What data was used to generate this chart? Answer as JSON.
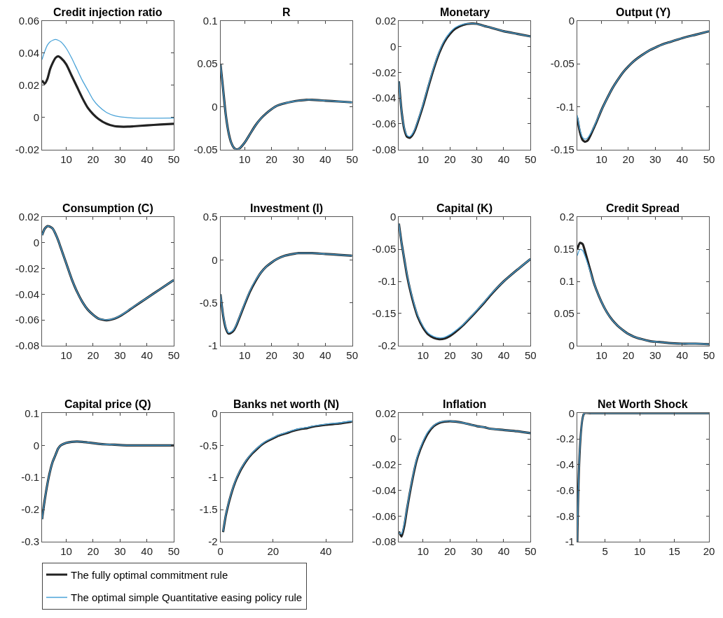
{
  "chart_data": [
    {
      "type": "line",
      "title": "Credit injection ratio",
      "legend": "bottom",
      "xlim": [
        1,
        50
      ],
      "xticks": [
        10,
        20,
        30,
        40,
        50
      ],
      "ylim": [
        -0.02,
        0.06
      ],
      "yticks": [
        -0.02,
        0,
        0.02,
        0.04,
        0.06
      ],
      "x": [
        1,
        2,
        3,
        4,
        5,
        6,
        7,
        8,
        10,
        12,
        14,
        16,
        18,
        20,
        22,
        25,
        28,
        30,
        33,
        35,
        40,
        45,
        50
      ],
      "series": [
        {
          "name": "The fully optimal commitment rule",
          "color": "#222222",
          "values": [
            0.023,
            0.021,
            0.024,
            0.03,
            0.034,
            0.037,
            0.038,
            0.037,
            0.033,
            0.026,
            0.019,
            0.012,
            0.006,
            0.002,
            -0.001,
            -0.004,
            -0.0055,
            -0.0058,
            -0.0058,
            -0.0056,
            -0.005,
            -0.0045,
            -0.004
          ]
        },
        {
          "name": "The optimal simple Quantitative easing policy rule",
          "color": "#4aa3d8",
          "values": [
            0.036,
            0.041,
            0.045,
            0.047,
            0.048,
            0.0485,
            0.048,
            0.047,
            0.043,
            0.037,
            0.03,
            0.023,
            0.017,
            0.011,
            0.007,
            0.003,
            0.001,
            0.0003,
            -0.0002,
            -0.0004,
            -0.0005,
            -0.0005,
            -0.0004
          ]
        }
      ]
    },
    {
      "type": "line",
      "title": "R",
      "xlim": [
        1,
        50
      ],
      "xticks": [
        10,
        20,
        30,
        40,
        50
      ],
      "ylim": [
        -0.05,
        0.1
      ],
      "yticks": [
        -0.05,
        0,
        0.05,
        0.1
      ],
      "x": [
        1,
        2,
        3,
        4,
        5,
        6,
        7,
        8,
        10,
        12,
        14,
        16,
        18,
        20,
        22,
        25,
        28,
        30,
        33,
        35,
        40,
        45,
        50
      ],
      "series": [
        {
          "name": "The fully optimal commitment rule",
          "color": "#222222",
          "values": [
            0.05,
            0.02,
            -0.01,
            -0.03,
            -0.042,
            -0.048,
            -0.05,
            -0.049,
            -0.042,
            -0.032,
            -0.022,
            -0.014,
            -0.008,
            -0.003,
            0.001,
            0.004,
            0.006,
            0.007,
            0.008,
            0.008,
            0.007,
            0.006,
            0.005
          ]
        },
        {
          "name": "The optimal simple Quantitative easing policy rule",
          "color": "#4aa3d8",
          "values": [
            0.05,
            0.02,
            -0.01,
            -0.03,
            -0.042,
            -0.048,
            -0.05,
            -0.049,
            -0.042,
            -0.032,
            -0.022,
            -0.014,
            -0.008,
            -0.003,
            0.001,
            0.004,
            0.006,
            0.007,
            0.008,
            0.008,
            0.007,
            0.006,
            0.005
          ]
        }
      ]
    },
    {
      "type": "line",
      "title": "Monetary",
      "xlim": [
        1,
        50
      ],
      "xticks": [
        10,
        20,
        30,
        40,
        50
      ],
      "ylim": [
        -0.08,
        0.02
      ],
      "yticks": [
        -0.08,
        -0.06,
        -0.04,
        -0.02,
        0,
        0.02
      ],
      "x": [
        1,
        2,
        3,
        4,
        5,
        6,
        7,
        8,
        10,
        12,
        14,
        16,
        18,
        20,
        22,
        25,
        28,
        30,
        33,
        35,
        40,
        45,
        50
      ],
      "series": [
        {
          "name": "The fully optimal commitment rule",
          "color": "#222222",
          "values": [
            -0.027,
            -0.05,
            -0.064,
            -0.07,
            -0.071,
            -0.069,
            -0.065,
            -0.059,
            -0.046,
            -0.031,
            -0.017,
            -0.005,
            0.004,
            0.01,
            0.014,
            0.017,
            0.018,
            0.0178,
            0.016,
            0.015,
            0.012,
            0.01,
            0.008
          ]
        },
        {
          "name": "The optimal simple Quantitative easing policy rule",
          "color": "#4aa3d8",
          "values": [
            -0.027,
            -0.05,
            -0.063,
            -0.069,
            -0.07,
            -0.068,
            -0.064,
            -0.058,
            -0.045,
            -0.03,
            -0.016,
            -0.004,
            0.005,
            0.011,
            0.015,
            0.0175,
            0.018,
            0.0178,
            0.016,
            0.015,
            0.012,
            0.01,
            0.008
          ]
        }
      ]
    },
    {
      "type": "line",
      "title": "Output (Y)",
      "xlim": [
        1,
        50
      ],
      "xticks": [
        10,
        20,
        30,
        40,
        50
      ],
      "ylim": [
        -0.15,
        0
      ],
      "yticks": [
        -0.15,
        -0.1,
        -0.05,
        0
      ],
      "x": [
        1,
        2,
        3,
        4,
        5,
        6,
        7,
        8,
        10,
        12,
        14,
        16,
        18,
        20,
        22,
        25,
        28,
        30,
        33,
        35,
        40,
        45,
        50
      ],
      "series": [
        {
          "name": "The fully optimal commitment rule",
          "color": "#222222",
          "values": [
            -0.113,
            -0.13,
            -0.139,
            -0.141,
            -0.139,
            -0.133,
            -0.126,
            -0.119,
            -0.104,
            -0.091,
            -0.079,
            -0.069,
            -0.06,
            -0.053,
            -0.047,
            -0.04,
            -0.034,
            -0.031,
            -0.027,
            -0.025,
            -0.02,
            -0.016,
            -0.012
          ]
        },
        {
          "name": "The optimal simple Quantitative easing policy rule",
          "color": "#4aa3d8",
          "values": [
            -0.11,
            -0.127,
            -0.136,
            -0.138,
            -0.136,
            -0.131,
            -0.125,
            -0.118,
            -0.104,
            -0.091,
            -0.079,
            -0.069,
            -0.06,
            -0.053,
            -0.047,
            -0.04,
            -0.034,
            -0.031,
            -0.027,
            -0.025,
            -0.02,
            -0.016,
            -0.012
          ]
        }
      ]
    },
    {
      "type": "line",
      "title": "Consumption (C)",
      "xlim": [
        1,
        50
      ],
      "xticks": [
        10,
        20,
        30,
        40,
        50
      ],
      "ylim": [
        -0.08,
        0.02
      ],
      "yticks": [
        -0.08,
        -0.06,
        -0.04,
        -0.02,
        0,
        0.02
      ],
      "x": [
        1,
        2,
        3,
        4,
        5,
        6,
        7,
        8,
        10,
        12,
        14,
        16,
        18,
        20,
        22,
        25,
        28,
        30,
        33,
        35,
        40,
        45,
        50
      ],
      "series": [
        {
          "name": "The fully optimal commitment rule",
          "color": "#222222",
          "values": [
            0.006,
            0.011,
            0.013,
            0.0125,
            0.011,
            0.007,
            0.002,
            -0.004,
            -0.016,
            -0.028,
            -0.038,
            -0.046,
            -0.052,
            -0.056,
            -0.059,
            -0.0603,
            -0.059,
            -0.057,
            -0.053,
            -0.05,
            -0.043,
            -0.036,
            -0.029
          ]
        },
        {
          "name": "The optimal simple Quantitative easing policy rule",
          "color": "#4aa3d8",
          "values": [
            0.006,
            0.011,
            0.013,
            0.0125,
            0.011,
            0.007,
            0.002,
            -0.004,
            -0.016,
            -0.028,
            -0.038,
            -0.046,
            -0.052,
            -0.056,
            -0.059,
            -0.06,
            -0.0588,
            -0.0568,
            -0.0528,
            -0.0498,
            -0.043,
            -0.036,
            -0.029
          ]
        }
      ]
    },
    {
      "type": "line",
      "title": "Investment (I)",
      "xlim": [
        1,
        50
      ],
      "xticks": [
        10,
        20,
        30,
        40,
        50
      ],
      "ylim": [
        -1,
        0.5
      ],
      "yticks": [
        -1,
        -0.5,
        0,
        0.5
      ],
      "x": [
        1,
        2,
        3,
        4,
        5,
        6,
        7,
        8,
        10,
        12,
        14,
        16,
        18,
        20,
        22,
        25,
        28,
        30,
        33,
        35,
        40,
        45,
        50
      ],
      "series": [
        {
          "name": "The fully optimal commitment rule",
          "color": "#222222",
          "values": [
            -0.4,
            -0.65,
            -0.8,
            -0.86,
            -0.85,
            -0.82,
            -0.76,
            -0.68,
            -0.52,
            -0.37,
            -0.25,
            -0.15,
            -0.08,
            -0.03,
            0.01,
            0.05,
            0.07,
            0.08,
            0.08,
            0.08,
            0.07,
            0.06,
            0.05
          ]
        },
        {
          "name": "The optimal simple Quantitative easing policy rule",
          "color": "#4aa3d8",
          "values": [
            -0.4,
            -0.64,
            -0.79,
            -0.85,
            -0.84,
            -0.81,
            -0.75,
            -0.67,
            -0.51,
            -0.36,
            -0.24,
            -0.15,
            -0.08,
            -0.03,
            0.01,
            0.05,
            0.07,
            0.08,
            0.08,
            0.08,
            0.07,
            0.06,
            0.05
          ]
        }
      ]
    },
    {
      "type": "line",
      "title": "Capital (K)",
      "xlim": [
        1,
        50
      ],
      "xticks": [
        10,
        20,
        30,
        40,
        50
      ],
      "ylim": [
        -0.2,
        0
      ],
      "yticks": [
        -0.2,
        -0.15,
        -0.1,
        -0.05,
        0
      ],
      "x": [
        1,
        2,
        3,
        4,
        5,
        6,
        7,
        8,
        10,
        12,
        14,
        16,
        18,
        20,
        22,
        25,
        28,
        30,
        33,
        35,
        40,
        45,
        50
      ],
      "series": [
        {
          "name": "The fully optimal commitment rule",
          "color": "#222222",
          "values": [
            -0.01,
            -0.04,
            -0.065,
            -0.09,
            -0.11,
            -0.127,
            -0.142,
            -0.155,
            -0.172,
            -0.183,
            -0.188,
            -0.19,
            -0.189,
            -0.185,
            -0.179,
            -0.168,
            -0.155,
            -0.146,
            -0.132,
            -0.122,
            -0.1,
            -0.082,
            -0.065
          ]
        },
        {
          "name": "The optimal simple Quantitative easing policy rule",
          "color": "#4aa3d8",
          "values": [
            -0.01,
            -0.04,
            -0.064,
            -0.088,
            -0.108,
            -0.125,
            -0.14,
            -0.153,
            -0.17,
            -0.181,
            -0.186,
            -0.188,
            -0.187,
            -0.183,
            -0.177,
            -0.167,
            -0.154,
            -0.145,
            -0.131,
            -0.121,
            -0.1,
            -0.082,
            -0.065
          ]
        }
      ]
    },
    {
      "type": "line",
      "title": "Credit Spread",
      "xlim": [
        1,
        50
      ],
      "xticks": [
        10,
        20,
        30,
        40,
        50
      ],
      "ylim": [
        0,
        0.2
      ],
      "yticks": [
        0,
        0.05,
        0.1,
        0.15,
        0.2
      ],
      "x": [
        1,
        2,
        3,
        4,
        5,
        6,
        7,
        8,
        10,
        12,
        14,
        16,
        18,
        20,
        22,
        25,
        28,
        30,
        33,
        35,
        40,
        45,
        50
      ],
      "series": [
        {
          "name": "The fully optimal commitment rule",
          "color": "#222222",
          "values": [
            0.15,
            0.16,
            0.158,
            0.145,
            0.13,
            0.115,
            0.1,
            0.088,
            0.068,
            0.052,
            0.04,
            0.031,
            0.024,
            0.018,
            0.014,
            0.01,
            0.007,
            0.006,
            0.005,
            0.004,
            0.003,
            0.003,
            0.002
          ]
        },
        {
          "name": "The optimal simple Quantitative easing policy rule",
          "color": "#4aa3d8",
          "values": [
            0.14,
            0.15,
            0.148,
            0.138,
            0.126,
            0.113,
            0.1,
            0.088,
            0.068,
            0.052,
            0.04,
            0.031,
            0.024,
            0.018,
            0.014,
            0.01,
            0.007,
            0.006,
            0.005,
            0.004,
            0.003,
            0.003,
            0.002
          ]
        }
      ]
    },
    {
      "type": "line",
      "title": "Capital price (Q)",
      "xlim": [
        1,
        50
      ],
      "xticks": [
        10,
        20,
        30,
        40,
        50
      ],
      "ylim": [
        -0.3,
        0.1
      ],
      "yticks": [
        -0.3,
        -0.2,
        -0.1,
        0,
        0.1
      ],
      "x": [
        1,
        2,
        3,
        4,
        5,
        6,
        7,
        8,
        10,
        12,
        14,
        16,
        18,
        20,
        22,
        25,
        28,
        30,
        33,
        35,
        40,
        45,
        50
      ],
      "series": [
        {
          "name": "The fully optimal commitment rule",
          "color": "#222222",
          "values": [
            -0.23,
            -0.17,
            -0.12,
            -0.08,
            -0.05,
            -0.03,
            -0.01,
            0,
            0.008,
            0.011,
            0.012,
            0.011,
            0.009,
            0.007,
            0.005,
            0.003,
            0.002,
            0.001,
            0,
            0,
            0,
            0,
            0
          ]
        },
        {
          "name": "The optimal simple Quantitative easing policy rule",
          "color": "#4aa3d8",
          "values": [
            -0.23,
            -0.17,
            -0.12,
            -0.08,
            -0.05,
            -0.03,
            -0.01,
            0,
            0.008,
            0.011,
            0.012,
            0.011,
            0.009,
            0.007,
            0.005,
            0.003,
            0.002,
            0.001,
            0,
            0,
            0,
            0,
            0
          ]
        }
      ]
    },
    {
      "type": "line",
      "title": "Banks net worth (N)",
      "xlim": [
        0,
        50
      ],
      "xticks": [
        0,
        20,
        40
      ],
      "ylim": [
        -2,
        0
      ],
      "yticks": [
        -2,
        -1.5,
        -1,
        -0.5,
        0
      ],
      "x": [
        1,
        2,
        3,
        4,
        5,
        6,
        7,
        8,
        10,
        12,
        14,
        16,
        18,
        20,
        22,
        25,
        28,
        30,
        33,
        35,
        40,
        45,
        50
      ],
      "series": [
        {
          "name": "The fully optimal commitment rule",
          "color": "#222222",
          "values": [
            -1.85,
            -1.6,
            -1.42,
            -1.27,
            -1.14,
            -1.03,
            -0.94,
            -0.86,
            -0.73,
            -0.63,
            -0.55,
            -0.48,
            -0.43,
            -0.39,
            -0.35,
            -0.31,
            -0.27,
            -0.25,
            -0.23,
            -0.21,
            -0.18,
            -0.16,
            -0.13
          ]
        },
        {
          "name": "The optimal simple Quantitative easing policy rule",
          "color": "#4aa3d8",
          "values": [
            -1.84,
            -1.59,
            -1.41,
            -1.26,
            -1.13,
            -1.02,
            -0.93,
            -0.85,
            -0.72,
            -0.62,
            -0.54,
            -0.47,
            -0.42,
            -0.38,
            -0.34,
            -0.3,
            -0.26,
            -0.24,
            -0.22,
            -0.2,
            -0.17,
            -0.15,
            -0.12
          ]
        }
      ]
    },
    {
      "type": "line",
      "title": "Inflation",
      "xlim": [
        1,
        50
      ],
      "xticks": [
        10,
        20,
        30,
        40,
        50
      ],
      "ylim": [
        -0.08,
        0.02
      ],
      "yticks": [
        -0.08,
        -0.06,
        -0.04,
        -0.02,
        0,
        0.02
      ],
      "x": [
        1,
        2,
        3,
        4,
        5,
        6,
        7,
        8,
        10,
        12,
        14,
        16,
        18,
        20,
        22,
        25,
        28,
        30,
        33,
        35,
        40,
        45,
        50
      ],
      "series": [
        {
          "name": "The fully optimal commitment rule",
          "color": "#222222",
          "values": [
            -0.072,
            -0.076,
            -0.068,
            -0.055,
            -0.043,
            -0.032,
            -0.022,
            -0.014,
            -0.003,
            0.005,
            0.01,
            0.0125,
            0.0135,
            0.0138,
            0.0135,
            0.0125,
            0.011,
            0.01,
            0.009,
            0.008,
            0.007,
            0.006,
            0.0045
          ]
        },
        {
          "name": "The optimal simple Quantitative easing policy rule",
          "color": "#4aa3d8",
          "values": [
            -0.073,
            -0.074,
            -0.066,
            -0.054,
            -0.042,
            -0.031,
            -0.021,
            -0.013,
            -0.002,
            0.006,
            0.0105,
            0.013,
            0.0138,
            0.014,
            0.0135,
            0.0125,
            0.011,
            0.01,
            0.009,
            0.008,
            0.007,
            0.006,
            0.0045
          ]
        }
      ]
    },
    {
      "type": "line",
      "title": "Net Worth Shock",
      "xlim": [
        1,
        20
      ],
      "xticks": [
        5,
        10,
        15,
        20
      ],
      "ylim": [
        -1,
        0
      ],
      "yticks": [
        -1,
        -0.8,
        -0.6,
        -0.4,
        -0.2,
        0
      ],
      "x": [
        1,
        2,
        3,
        20
      ],
      "series": [
        {
          "name": "The fully optimal commitment rule",
          "color": "#222222",
          "values": [
            -1,
            0,
            0,
            0
          ]
        },
        {
          "name": "The optimal simple Quantitative easing policy rule",
          "color": "#4aa3d8",
          "values": [
            -1,
            0,
            0,
            0
          ]
        }
      ]
    }
  ]
}
